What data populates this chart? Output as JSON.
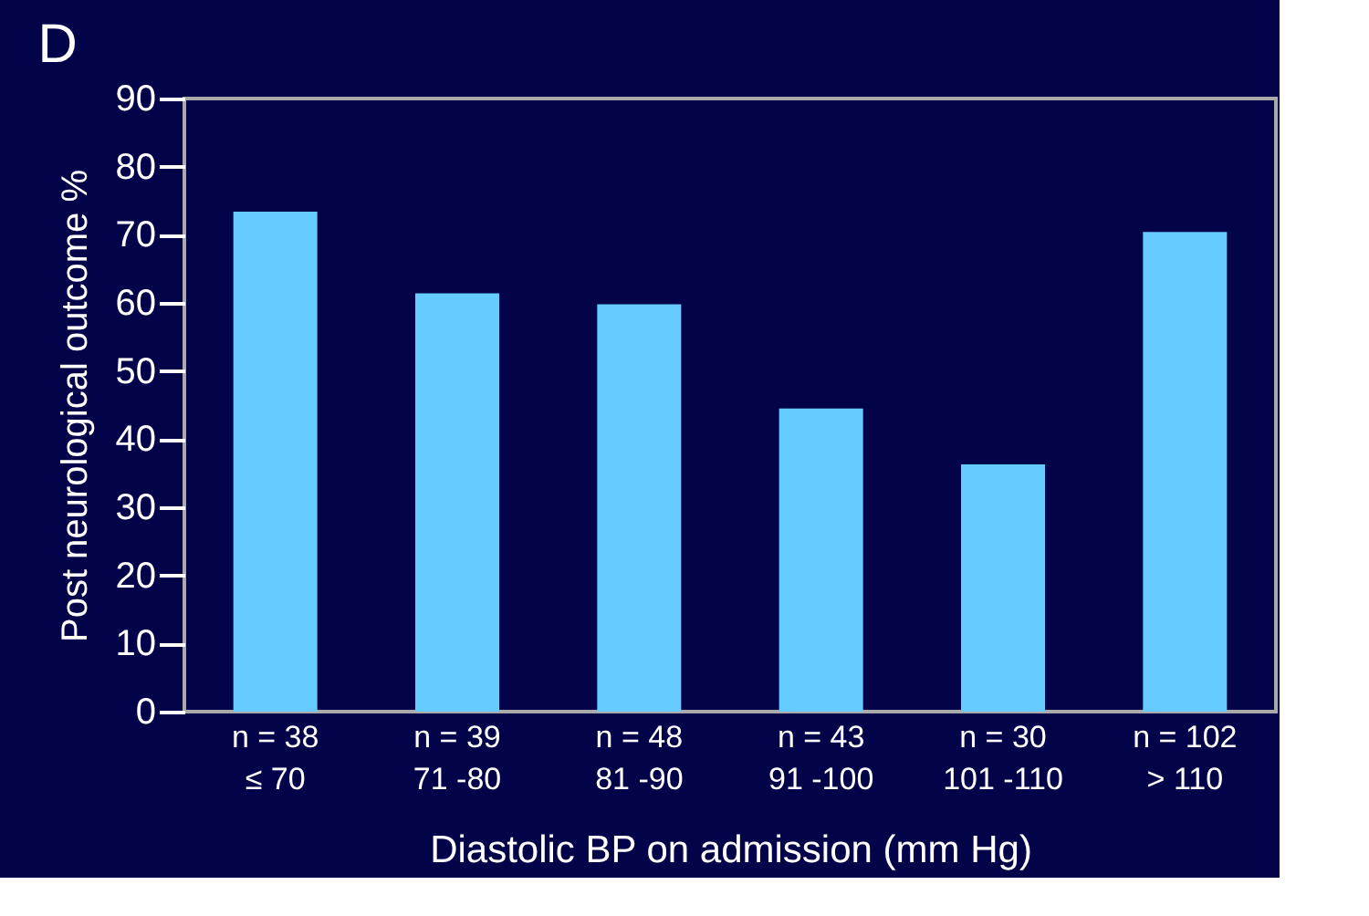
{
  "chart_data": {
    "type": "bar",
    "title": "D",
    "categories": [
      "n = 38\n≤ 70",
      "n = 39\n71 -80",
      "n = 48\n81 -90",
      "n = 43\n91 -100",
      "n = 30\n101 -110",
      "n = 102\n> 110"
    ],
    "values": [
      73.4,
      61.4,
      59.8,
      44.5,
      36.3,
      70.4
    ],
    "color": "#66ccff",
    "xlabel": "Diastolic BP on admission (mm Hg)",
    "ylabel": "Post neurological outcome %",
    "ylim": [
      0,
      90
    ],
    "yticks": [
      0,
      10,
      20,
      30,
      40,
      50,
      60,
      70,
      80,
      90
    ],
    "grid": false
  }
}
